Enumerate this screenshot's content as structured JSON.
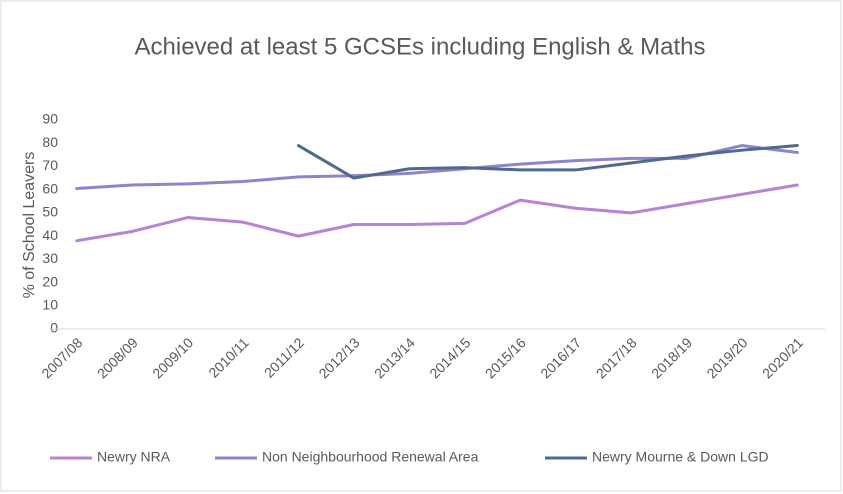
{
  "chart_data": {
    "type": "line",
    "title": "Achieved at least 5 GCSEs including English & Maths",
    "y_label": "% of School Leavers",
    "categories": [
      "2007/08",
      "2008/09",
      "2009/10",
      "2010/11",
      "2011/12",
      "2012/13",
      "2013/14",
      "2014/15",
      "2015/16",
      "2016/17",
      "2017/18",
      "2018/19",
      "2019/20",
      "2020/21"
    ],
    "series": [
      {
        "name": "Newry NRA",
        "color": "#b584d2",
        "values": [
          38,
          42,
          48,
          46,
          40,
          45,
          45,
          45.5,
          55.5,
          52,
          50,
          54,
          58,
          62
        ]
      },
      {
        "name": "Non Neighbourhood Renewal Area",
        "color": "#8b86cc",
        "values": [
          60.5,
          62,
          62.5,
          63.5,
          65.5,
          66,
          67,
          69,
          71,
          72.5,
          73.5,
          73.5,
          79,
          76
        ]
      },
      {
        "name": "Newry Mourne & Down LGD",
        "color": "#4f6a8c",
        "values": [
          null,
          null,
          null,
          null,
          79,
          65,
          69,
          69.5,
          68.5,
          68.5,
          71.5,
          74.5,
          77,
          79
        ]
      }
    ],
    "ylim": [
      0,
      90
    ],
    "yticks": [
      0,
      10,
      20,
      30,
      40,
      50,
      60,
      70,
      80,
      90
    ],
    "grid": false,
    "legend": "bottom"
  }
}
